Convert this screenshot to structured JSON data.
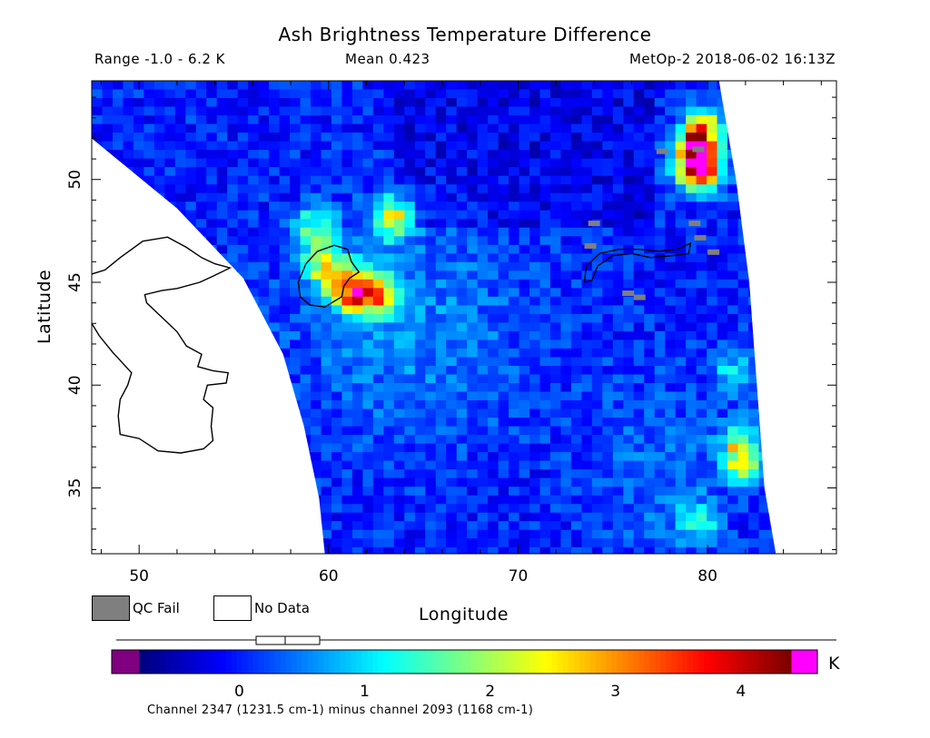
{
  "header": {
    "title": "Ash Brightness Temperature Difference",
    "range": "Range -1.0 - 6.2 K",
    "mean": "Mean 0.423",
    "satellite": "MetOp-2 2018-06-02 16:13Z"
  },
  "legend": {
    "qc_fail": "QC Fail",
    "no_data": "No Data",
    "qc_color": "#7f7f7f",
    "no_data_color": "#ffffff"
  },
  "colorbar": {
    "unit": "K",
    "ticks": [
      "0",
      "1",
      "2",
      "3",
      "4"
    ],
    "tick_values": [
      0,
      1,
      2,
      3,
      4
    ],
    "range": [
      -0.8,
      4.4
    ],
    "low_color": "#800080",
    "high_color": "#ff00ff",
    "footnote": "Channel 2347 (1231.5 cm-1) minus channel 2093 (1168 cm-1)"
  },
  "chart_data": {
    "type": "heatmap",
    "title": "Ash Brightness Temperature Difference",
    "xlabel": "Longitude",
    "ylabel": "Latitude",
    "xlim": [
      47.5,
      86.8
    ],
    "ylim": [
      31.8,
      54.8
    ],
    "x_ticks": [
      50,
      60,
      70,
      80
    ],
    "y_ticks": [
      35,
      40,
      45,
      50
    ],
    "x_tick_labels": [
      "50",
      "60",
      "70",
      "80"
    ],
    "y_tick_labels": [
      "35",
      "40",
      "45",
      "50"
    ],
    "value_range": [
      -1.0,
      6.2
    ],
    "mean": 0.423,
    "unit": "K",
    "swath_edges": {
      "west": [
        [
          47.5,
          52.0
        ],
        [
          52.0,
          48.6
        ],
        [
          55.5,
          45.2
        ],
        [
          57.6,
          41.5
        ],
        [
          58.7,
          38.0
        ],
        [
          59.5,
          34.5
        ],
        [
          59.8,
          31.8
        ]
      ],
      "east": [
        [
          80.6,
          54.8
        ],
        [
          81.5,
          50.0
        ],
        [
          82.2,
          45.0
        ],
        [
          82.6,
          40.0
        ],
        [
          83.0,
          35.0
        ],
        [
          83.6,
          31.8
        ]
      ]
    },
    "hotspots": [
      {
        "lon": 79.4,
        "lat": 52.5,
        "value": 4.6
      },
      {
        "lon": 79.0,
        "lat": 51.2,
        "value": 4.2
      },
      {
        "lon": 79.4,
        "lat": 50.6,
        "value": 3.6
      },
      {
        "lon": 61.0,
        "lat": 44.7,
        "value": 3.2
      },
      {
        "lon": 62.3,
        "lat": 44.6,
        "value": 3.5
      },
      {
        "lon": 59.4,
        "lat": 46.0,
        "value": 2.3
      },
      {
        "lon": 60.4,
        "lat": 45.4,
        "value": 2.1
      },
      {
        "lon": 81.6,
        "lat": 36.4,
        "value": 2.6
      },
      {
        "lon": 81.4,
        "lat": 37.5,
        "value": 2.2
      },
      {
        "lon": 81.2,
        "lat": 41.0,
        "value": 1.9
      },
      {
        "lon": 79.2,
        "lat": 33.6,
        "value": 1.8
      },
      {
        "lon": 63.2,
        "lat": 48.4,
        "value": 3.0
      },
      {
        "lon": 59.0,
        "lat": 47.8,
        "value": 2.5
      }
    ]
  }
}
